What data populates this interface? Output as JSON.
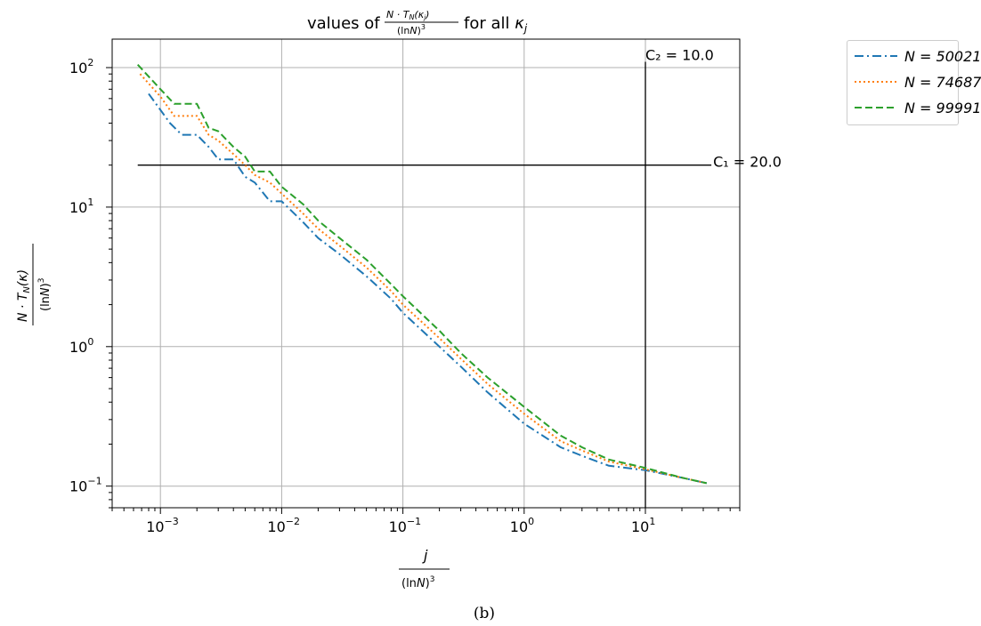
{
  "chart_data": {
    "type": "line",
    "title": "values of (N · T_N(κ_j)) / (lnN)³ for all κ_j",
    "xlabel": "j / (lnN)³",
    "ylabel": "(N · T_N(κ)) / (lnN)³",
    "xscale": "log",
    "yscale": "log",
    "xlim": [
      0.0004,
      60
    ],
    "ylim": [
      0.07,
      160
    ],
    "grid": true,
    "legend_placement": "outside-top-right",
    "xticks": [
      {
        "value": 0.001,
        "base": "10",
        "exp": "−3"
      },
      {
        "value": 0.01,
        "base": "10",
        "exp": "−2"
      },
      {
        "value": 0.1,
        "base": "10",
        "exp": "−1"
      },
      {
        "value": 1,
        "base": "10",
        "exp": "0"
      },
      {
        "value": 10,
        "base": "10",
        "exp": "1"
      }
    ],
    "yticks": [
      {
        "value": 0.1,
        "base": "10",
        "exp": "−1"
      },
      {
        "value": 1,
        "base": "10",
        "exp": "0"
      },
      {
        "value": 10,
        "base": "10",
        "exp": "1"
      },
      {
        "value": 100,
        "base": "10",
        "exp": "2"
      }
    ],
    "reference_lines": [
      {
        "orientation": "horizontal",
        "value": 20.0,
        "label": "C₁ = 20.0",
        "from_x": 0.00065,
        "to_x": 35
      },
      {
        "orientation": "vertical",
        "value": 10.0,
        "label": "C₂ = 10.0",
        "from_y": 0.07,
        "to_y": 110
      }
    ],
    "series": [
      {
        "name": "N = 50021",
        "color": "#1f77b4",
        "dash": "dashdot",
        "points": [
          [
            0.0008,
            65
          ],
          [
            0.0012,
            40
          ],
          [
            0.0015,
            33
          ],
          [
            0.002,
            33
          ],
          [
            0.0025,
            27
          ],
          [
            0.003,
            22
          ],
          [
            0.004,
            22
          ],
          [
            0.005,
            16.5
          ],
          [
            0.006,
            15
          ],
          [
            0.008,
            11
          ],
          [
            0.01,
            11
          ],
          [
            0.015,
            7.8
          ],
          [
            0.02,
            6.0
          ],
          [
            0.03,
            4.6
          ],
          [
            0.05,
            3.2
          ],
          [
            0.08,
            2.2
          ],
          [
            0.1,
            1.75
          ],
          [
            0.2,
            1.0
          ],
          [
            0.3,
            0.72
          ],
          [
            0.5,
            0.47
          ],
          [
            1,
            0.28
          ],
          [
            2,
            0.19
          ],
          [
            3,
            0.165
          ],
          [
            5,
            0.14
          ],
          [
            10,
            0.13
          ],
          [
            20,
            0.115
          ],
          [
            32,
            0.105
          ]
        ]
      },
      {
        "name": "N = 74687",
        "color": "#ff7f0e",
        "dash": "dotted",
        "points": [
          [
            0.00068,
            90
          ],
          [
            0.001,
            62
          ],
          [
            0.0013,
            45
          ],
          [
            0.002,
            45
          ],
          [
            0.0025,
            33
          ],
          [
            0.003,
            30
          ],
          [
            0.004,
            24
          ],
          [
            0.005,
            20
          ],
          [
            0.006,
            17
          ],
          [
            0.008,
            15
          ],
          [
            0.01,
            12.5
          ],
          [
            0.015,
            9
          ],
          [
            0.02,
            7
          ],
          [
            0.03,
            5.3
          ],
          [
            0.05,
            3.7
          ],
          [
            0.08,
            2.5
          ],
          [
            0.1,
            2.0
          ],
          [
            0.2,
            1.15
          ],
          [
            0.3,
            0.82
          ],
          [
            0.5,
            0.54
          ],
          [
            1,
            0.33
          ],
          [
            2,
            0.21
          ],
          [
            3,
            0.18
          ],
          [
            5,
            0.15
          ],
          [
            10,
            0.132
          ],
          [
            20,
            0.115
          ],
          [
            32,
            0.105
          ]
        ]
      },
      {
        "name": "N = 99991",
        "color": "#2ca02c",
        "dash": "dashed",
        "points": [
          [
            0.00065,
            105
          ],
          [
            0.001,
            70
          ],
          [
            0.0013,
            55
          ],
          [
            0.002,
            55
          ],
          [
            0.0025,
            37
          ],
          [
            0.003,
            35
          ],
          [
            0.004,
            27
          ],
          [
            0.005,
            23
          ],
          [
            0.006,
            18
          ],
          [
            0.008,
            18
          ],
          [
            0.01,
            14
          ],
          [
            0.015,
            10.5
          ],
          [
            0.02,
            8
          ],
          [
            0.03,
            6
          ],
          [
            0.05,
            4.2
          ],
          [
            0.08,
            2.8
          ],
          [
            0.1,
            2.3
          ],
          [
            0.2,
            1.3
          ],
          [
            0.3,
            0.9
          ],
          [
            0.5,
            0.6
          ],
          [
            1,
            0.37
          ],
          [
            2,
            0.23
          ],
          [
            3,
            0.19
          ],
          [
            5,
            0.155
          ],
          [
            10,
            0.135
          ],
          [
            20,
            0.115
          ],
          [
            32,
            0.105
          ]
        ]
      }
    ]
  },
  "caption": "(b)"
}
